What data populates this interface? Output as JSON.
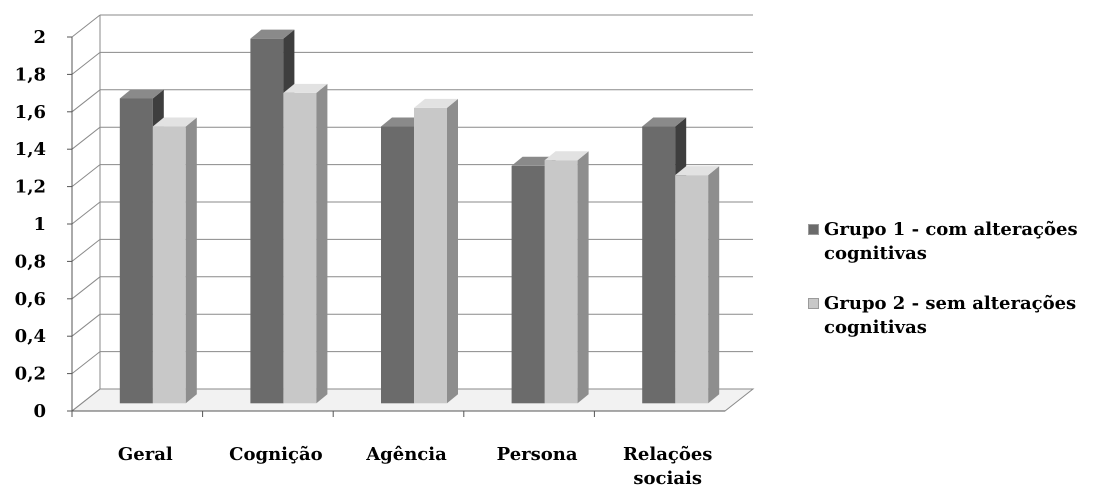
{
  "chart_data": {
    "type": "bar",
    "categories": [
      "Geral",
      "Cognição",
      "Agência",
      "Persona",
      "Relações sociais"
    ],
    "series": [
      {
        "name": "Grupo 1 - com alterações cognitivas",
        "values": [
          1.63,
          1.95,
          1.48,
          1.27,
          1.48
        ]
      },
      {
        "name": "Grupo 2 - sem alterações cognitivas",
        "values": [
          1.48,
          1.66,
          1.58,
          1.3,
          1.22
        ]
      }
    ],
    "ylim": [
      0,
      2
    ],
    "yticks": [
      "0",
      "0,2",
      "0,4",
      "0,6",
      "0,8",
      "1",
      "1,2",
      "1,4",
      "1,6",
      "1,8",
      "2"
    ],
    "grid": true,
    "legend_position": "right",
    "colors": {
      "series1": "#6b6b6b",
      "series2": "#c8c8c8"
    }
  }
}
